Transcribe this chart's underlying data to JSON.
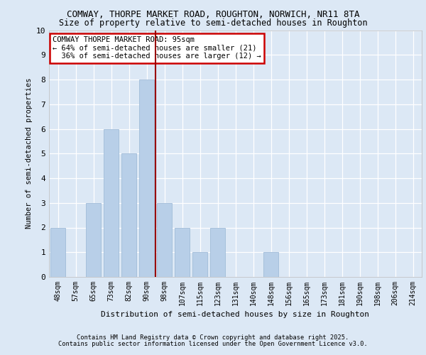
{
  "title_line1": "COMWAY, THORPE MARKET ROAD, ROUGHTON, NORWICH, NR11 8TA",
  "title_line2": "Size of property relative to semi-detached houses in Roughton",
  "xlabel": "Distribution of semi-detached houses by size in Roughton",
  "ylabel": "Number of semi-detached properties",
  "categories": [
    "48sqm",
    "57sqm",
    "65sqm",
    "73sqm",
    "82sqm",
    "90sqm",
    "98sqm",
    "107sqm",
    "115sqm",
    "123sqm",
    "131sqm",
    "140sqm",
    "148sqm",
    "156sqm",
    "165sqm",
    "173sqm",
    "181sqm",
    "190sqm",
    "198sqm",
    "206sqm",
    "214sqm"
  ],
  "values": [
    2,
    0,
    3,
    6,
    5,
    8,
    3,
    2,
    1,
    2,
    0,
    0,
    1,
    0,
    0,
    0,
    0,
    0,
    0,
    0,
    0
  ],
  "bar_color": "#b8cfe8",
  "bar_edge_color": "#a0bcd8",
  "vline_index": 5.5,
  "vline_color": "#990000",
  "annotation_text": "COMWAY THORPE MARKET ROAD: 95sqm\n← 64% of semi-detached houses are smaller (21)\n  36% of semi-detached houses are larger (12) →",
  "annotation_box_color": "#ffffff",
  "annotation_box_edge_color": "#cc0000",
  "ylim": [
    0,
    10
  ],
  "yticks": [
    0,
    1,
    2,
    3,
    4,
    5,
    6,
    7,
    8,
    9,
    10
  ],
  "background_color": "#dce8f5",
  "plot_bg_color": "#dce8f5",
  "grid_color": "#ffffff",
  "footer_line1": "Contains HM Land Registry data © Crown copyright and database right 2025.",
  "footer_line2": "Contains public sector information licensed under the Open Government Licence v3.0."
}
